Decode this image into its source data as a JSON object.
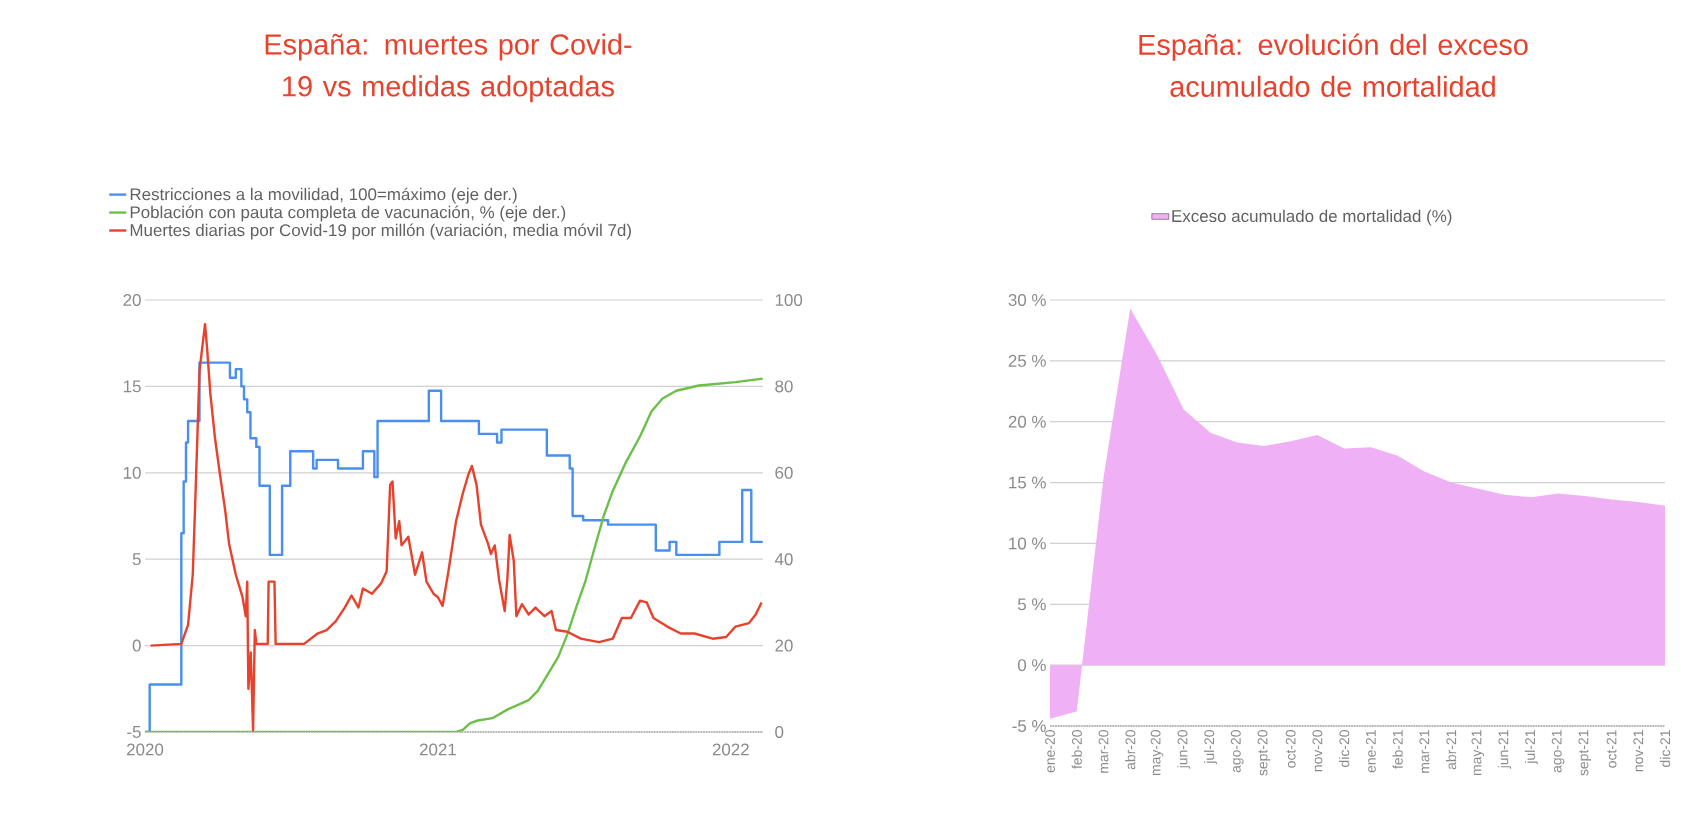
{
  "chart_data": [
    {
      "type": "line",
      "title": "España: muertes por Covid-19 vs medidas adoptadas",
      "xlim": [
        2020,
        2022.11
      ],
      "xticks": [
        2020,
        2021,
        2022
      ],
      "ylim": [
        -5,
        20
      ],
      "yticks": [
        -5,
        0,
        5,
        10,
        15,
        20
      ],
      "y2lim": [
        0,
        100
      ],
      "y2ticks": [
        0,
        20,
        40,
        60,
        80,
        100
      ],
      "grid": "y",
      "legend": "top left",
      "series": [
        {
          "name": "Restricciones a la movilidad, 100=máximo (eje der.)",
          "color": "#4a8ff0",
          "type": "step",
          "axis": "y2",
          "x": [
            2020.0,
            2020.016,
            2020.124,
            2020.132,
            2020.14,
            2020.147,
            2020.186,
            2020.29,
            2020.31,
            2020.329,
            2020.338,
            2020.349,
            2020.36,
            2020.38,
            2020.391,
            2020.426,
            2020.468,
            2020.496,
            2020.574,
            2020.586,
            2020.659,
            2020.744,
            2020.783,
            2020.794,
            2020.969,
            2021.011,
            2021.14,
            2021.202,
            2021.217,
            2021.372,
            2021.45,
            2021.46,
            2021.496,
            2021.581,
            2021.744,
            2021.791,
            2021.814,
            2021.961,
            2022.039,
            2022.07,
            2022.109
          ],
          "values": [
            0,
            11,
            46,
            58,
            67,
            72,
            85.5,
            82,
            84,
            80,
            77,
            74,
            68,
            66,
            57,
            41,
            57,
            65,
            61,
            63,
            61,
            65,
            59,
            72,
            79,
            72,
            69,
            67,
            70,
            64,
            61,
            50,
            49,
            48,
            42,
            44,
            41,
            44,
            56,
            44,
            44
          ]
        },
        {
          "name": "Población con pauta completa de vacunación, % (eje der.)",
          "color": "#6cc04a",
          "axis": "y2",
          "x": [
            2020.0,
            2021.062,
            2021.085,
            2021.109,
            2021.132,
            2021.186,
            2021.24,
            2021.31,
            2021.341,
            2021.372,
            2021.411,
            2021.442,
            2021.473,
            2021.504,
            2021.535,
            2021.566,
            2021.597,
            2021.643,
            2021.69,
            2021.729,
            2021.767,
            2021.814,
            2021.891,
            2022.016,
            2022.109
          ],
          "values": [
            0,
            0,
            0.5,
            2,
            2.6,
            3.2,
            5.3,
            7.4,
            9.5,
            13,
            17.4,
            22.6,
            29,
            35,
            42.6,
            50,
            55.8,
            62.6,
            68.4,
            74.2,
            77.2,
            79,
            80.2,
            81,
            81.8
          ]
        },
        {
          "name": "Muertes diarias por Covid-19 por millón (variación, media móvil 7d)",
          "color": "#e8412c",
          "x": [
            2020.019,
            2020.124,
            2020.147,
            2020.163,
            2020.171,
            2020.186,
            2020.205,
            2020.212,
            2020.223,
            2020.239,
            2020.256,
            2020.274,
            2020.287,
            2020.31,
            2020.333,
            2020.344,
            2020.349,
            2020.353,
            2020.361,
            2020.369,
            2020.375,
            2020.38,
            2020.419,
            2020.422,
            2020.442,
            2020.446,
            2020.543,
            2020.589,
            2020.62,
            2020.651,
            2020.682,
            2020.705,
            2020.729,
            2020.744,
            2020.775,
            2020.806,
            2020.825,
            2020.837,
            2020.845,
            2020.856,
            2020.868,
            2020.876,
            2020.899,
            2020.922,
            2020.946,
            2020.961,
            2020.985,
            2021.0,
            2021.016,
            2021.036,
            2021.062,
            2021.085,
            2021.104,
            2021.116,
            2021.132,
            2021.147,
            2021.171,
            2021.181,
            2021.194,
            2021.209,
            2021.228,
            2021.237,
            2021.245,
            2021.259,
            2021.268,
            2021.287,
            2021.31,
            2021.333,
            2021.364,
            2021.388,
            2021.403,
            2021.442,
            2021.488,
            2021.55,
            2021.597,
            2021.628,
            2021.659,
            2021.69,
            2021.713,
            2021.736,
            2021.783,
            2021.829,
            2021.876,
            2021.938,
            2021.984,
            2022.016,
            2022.062,
            2022.085,
            2022.105
          ],
          "values": [
            0,
            0.1,
            1.2,
            4.1,
            8,
            15.9,
            18.6,
            17.2,
            14.6,
            12,
            9.9,
            7.8,
            5.9,
            4.1,
            2.8,
            1.7,
            3.7,
            -2.5,
            -0.4,
            -4.9,
            0.9,
            0.1,
            0.1,
            3.7,
            3.7,
            0.1,
            0.1,
            0.7,
            0.9,
            1.4,
            2.2,
            2.9,
            2.2,
            3.3,
            3,
            3.6,
            4.3,
            9.3,
            9.5,
            6.2,
            7.2,
            5.8,
            6.3,
            4.1,
            5.4,
            3.7,
            3,
            2.8,
            2.3,
            4.3,
            7.2,
            8.8,
            9.9,
            10.4,
            9.3,
            7,
            5.9,
            5.3,
            5.8,
            3.8,
            2,
            3.8,
            6.4,
            4.9,
            1.7,
            2.4,
            1.8,
            2.2,
            1.7,
            2,
            0.9,
            0.8,
            0.4,
            0.2,
            0.4,
            1.6,
            1.6,
            2.6,
            2.5,
            1.6,
            1.1,
            0.7,
            0.7,
            0.4,
            0.5,
            1.1,
            1.3,
            1.8,
            2.5
          ]
        }
      ]
    },
    {
      "type": "area",
      "title": "España: evolución del exceso acumulado de mortalidad",
      "categories": [
        "ene-20",
        "feb-20",
        "mar-20",
        "abr-20",
        "may-20",
        "jun-20",
        "jul-20",
        "ago-20",
        "sept-20",
        "oct-20",
        "nov-20",
        "dic-20",
        "ene-21",
        "feb-21",
        "mar-21",
        "abr-21",
        "may-21",
        "jun-21",
        "jul-21",
        "ago-21",
        "sept-21",
        "oct-21",
        "nov-21",
        "dic-21"
      ],
      "ylim": [
        -5,
        30
      ],
      "yticks": [
        {
          "value": -5,
          "label": "-5 %"
        },
        {
          "value": 0,
          "label": "0 %"
        },
        {
          "value": 5,
          "label": "5 %"
        },
        {
          "value": 10,
          "label": "10 %"
        },
        {
          "value": 15,
          "label": "15 %"
        },
        {
          "value": 20,
          "label": "20 %"
        },
        {
          "value": 25,
          "label": "25 %"
        },
        {
          "value": 30,
          "label": "30 %"
        }
      ],
      "grid": "y",
      "legend": "top",
      "series": [
        {
          "name": "Exceso acumulado de mortalidad (%)",
          "color": "#f0b0f5",
          "values": [
            -4.4,
            -3.8,
            15.4,
            29.3,
            25.5,
            21.0,
            19.1,
            18.3,
            18.0,
            18.4,
            18.9,
            17.8,
            17.9,
            17.2,
            15.9,
            15.0,
            14.5,
            14.0,
            13.8,
            14.1,
            13.9,
            13.6,
            13.4,
            13.1
          ]
        }
      ]
    }
  ]
}
